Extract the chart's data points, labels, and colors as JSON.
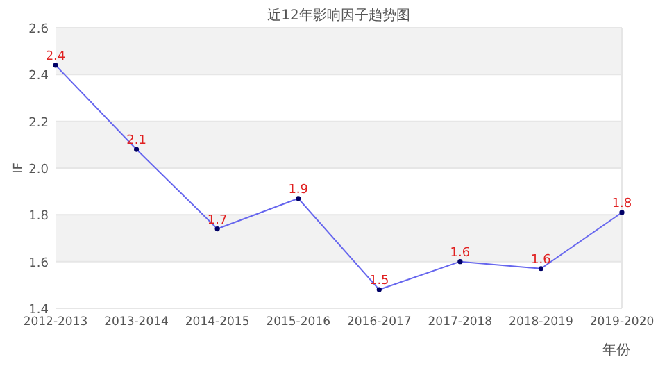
{
  "chart_data": {
    "type": "line",
    "title": "近12年影响因子趋势图",
    "xlabel": "年份",
    "ylabel": "IF",
    "categories": [
      "2012-2013",
      "2013-2014",
      "2014-2015",
      "2015-2016",
      "2016-2017",
      "2017-2018",
      "2018-2019",
      "2019-2020"
    ],
    "series": [
      {
        "color": "#6666ee",
        "values": [
          2.44,
          2.08,
          1.74,
          1.87,
          1.48,
          1.6,
          1.57,
          1.81
        ],
        "value_labels": [
          "2.4",
          "2.1",
          "1.7",
          "1.9",
          "1.5",
          "1.6",
          "1.6",
          "1.8"
        ]
      }
    ],
    "ylim": [
      1.4,
      2.6
    ],
    "yticks": [
      1.4,
      1.6,
      1.8,
      {
        "value": 2,
        "label": "2.0"
      },
      2.2,
      2.4,
      2.6
    ],
    "bands": [
      {
        "axis": "y",
        "from": 1.6,
        "to": 1.8,
        "color": "#f2f2f2"
      },
      {
        "axis": "y",
        "from": 2.0,
        "to": 2.2,
        "color": "#f2f2f2"
      },
      {
        "axis": "y",
        "from": 2.4,
        "to": 2.6,
        "color": "#f2f2f2"
      }
    ],
    "grid": "y",
    "marker": "circle",
    "line_style": "solid"
  }
}
